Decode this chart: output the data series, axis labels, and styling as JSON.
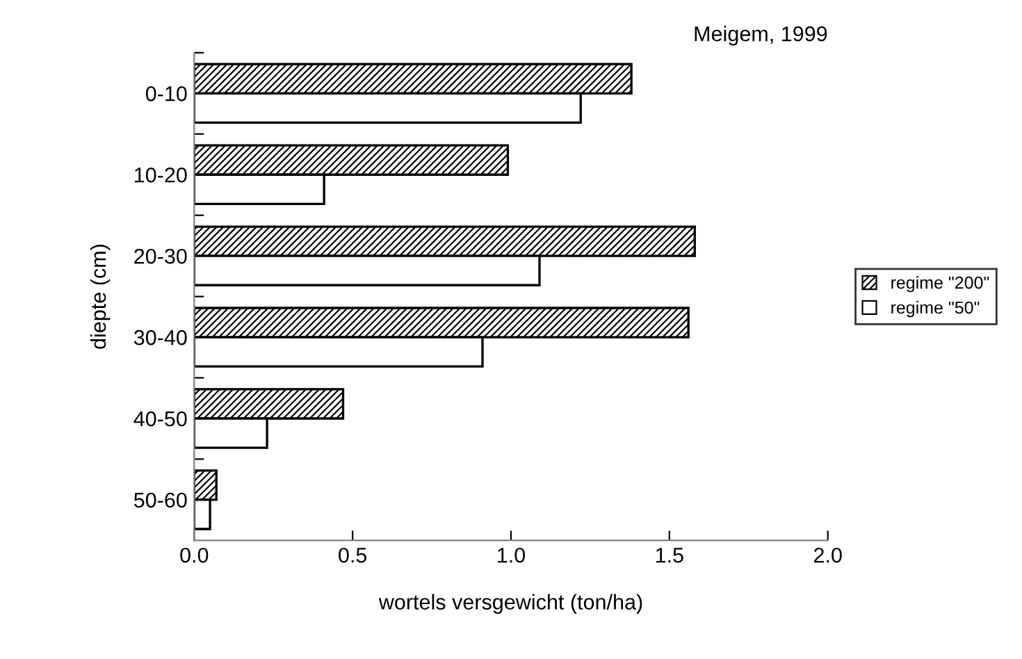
{
  "chart_data": {
    "type": "bar",
    "orientation": "horizontal",
    "title": "Meigem, 1999",
    "xlabel": "wortels versgewicht (ton/ha)",
    "ylabel": "diepte (cm)",
    "categories": [
      "0-10",
      "10-20",
      "20-30",
      "30-40",
      "40-50",
      "50-60"
    ],
    "series": [
      {
        "name": "regime \"200\"",
        "color": "#000000",
        "values": [
          1.38,
          0.99,
          1.58,
          1.56,
          0.47,
          0.07
        ]
      },
      {
        "name": "regime \"50\"",
        "color": "#000000",
        "values": [
          1.22,
          0.41,
          1.09,
          0.91,
          0.23,
          0.05
        ]
      }
    ],
    "xlim": [
      0,
      2
    ],
    "xticks": [
      {
        "value": 0,
        "label": "0.0"
      },
      {
        "value": 0.5,
        "label": "0.5"
      },
      {
        "value": 1,
        "label": "1.0"
      },
      {
        "value": 1.5,
        "label": "1.5"
      },
      {
        "value": 2,
        "label": "2.0"
      }
    ],
    "grid": false,
    "legend": "right"
  }
}
